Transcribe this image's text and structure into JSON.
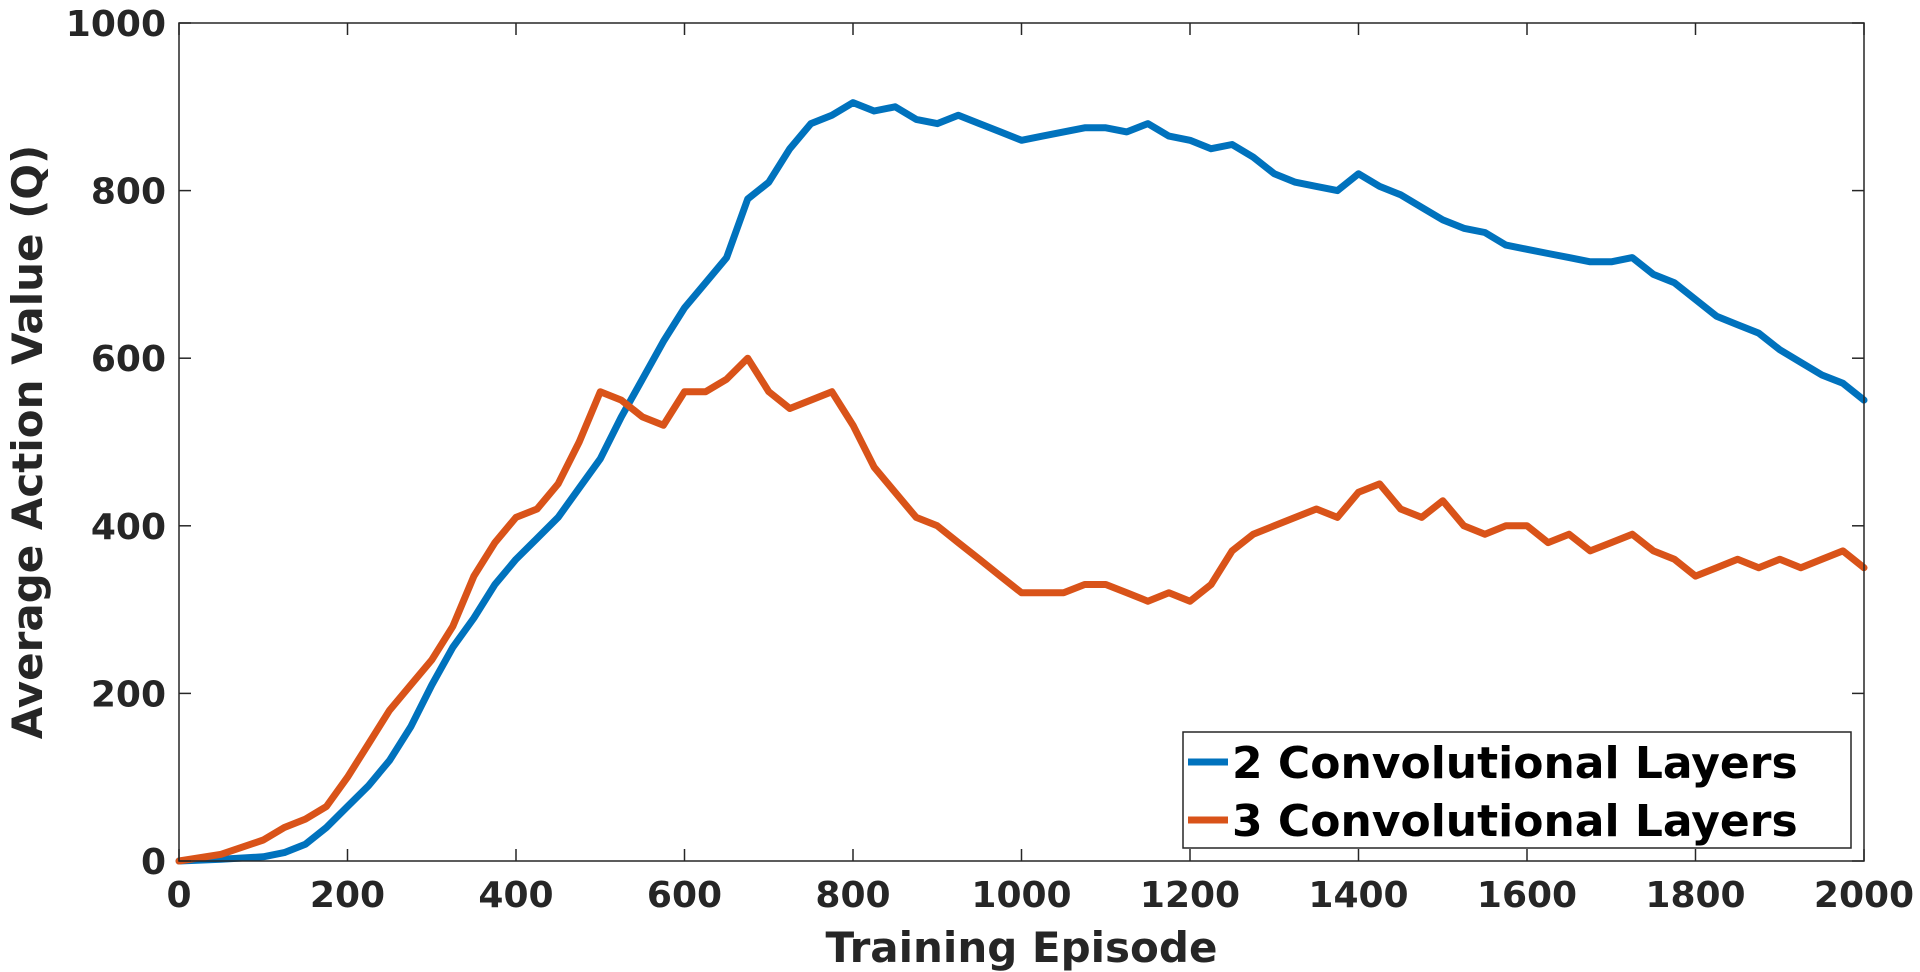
{
  "chart_data": {
    "type": "line",
    "title": "",
    "xlabel": "Training Episode",
    "ylabel": "Average Action Value (Q)",
    "xlim": [
      0,
      2000
    ],
    "ylim": [
      0,
      1000
    ],
    "x_ticks": [
      0,
      200,
      400,
      600,
      800,
      1000,
      1200,
      1400,
      1600,
      1800,
      2000
    ],
    "y_ticks": [
      0,
      200,
      400,
      600,
      800,
      1000
    ],
    "x_tick_labels": [
      "0",
      "200",
      "400",
      "600",
      "800",
      "1000",
      "1200",
      "1400",
      "1600",
      "1800",
      "2000"
    ],
    "y_tick_labels": [
      "0",
      "200",
      "400",
      "600",
      "800",
      "1000"
    ],
    "grid": false,
    "legend_position": "bottom-right",
    "series": [
      {
        "name": "2 Convolutional Layers",
        "color": "#0072BD",
        "x": [
          0,
          50,
          100,
          125,
          150,
          175,
          200,
          225,
          250,
          275,
          300,
          325,
          350,
          375,
          400,
          425,
          450,
          475,
          500,
          525,
          550,
          575,
          600,
          625,
          650,
          675,
          700,
          725,
          750,
          775,
          800,
          825,
          850,
          875,
          900,
          925,
          950,
          975,
          1000,
          1025,
          1050,
          1075,
          1100,
          1125,
          1150,
          1175,
          1200,
          1225,
          1250,
          1275,
          1300,
          1325,
          1350,
          1375,
          1400,
          1425,
          1450,
          1475,
          1500,
          1525,
          1550,
          1575,
          1600,
          1625,
          1650,
          1675,
          1700,
          1725,
          1750,
          1775,
          1800,
          1825,
          1850,
          1875,
          1900,
          1925,
          1950,
          1975,
          2000
        ],
        "y": [
          0,
          2,
          5,
          10,
          20,
          40,
          65,
          90,
          120,
          160,
          210,
          255,
          290,
          330,
          360,
          385,
          410,
          445,
          480,
          530,
          575,
          620,
          660,
          690,
          720,
          790,
          810,
          850,
          880,
          890,
          905,
          895,
          900,
          885,
          880,
          890,
          880,
          870,
          860,
          865,
          870,
          875,
          875,
          870,
          880,
          865,
          860,
          850,
          855,
          840,
          820,
          810,
          805,
          800,
          820,
          805,
          795,
          780,
          765,
          755,
          750,
          735,
          730,
          725,
          720,
          715,
          715,
          720,
          700,
          690,
          670,
          650,
          640,
          630,
          610,
          595,
          580,
          570,
          550
        ]
      },
      {
        "name": "3 Convolutional Layers",
        "color": "#D95319",
        "x": [
          0,
          50,
          100,
          125,
          150,
          175,
          200,
          225,
          250,
          275,
          300,
          325,
          350,
          375,
          400,
          425,
          450,
          475,
          500,
          525,
          550,
          575,
          600,
          625,
          650,
          675,
          700,
          725,
          750,
          775,
          800,
          825,
          850,
          875,
          900,
          925,
          950,
          975,
          1000,
          1025,
          1050,
          1075,
          1100,
          1125,
          1150,
          1175,
          1200,
          1225,
          1250,
          1275,
          1300,
          1325,
          1350,
          1375,
          1400,
          1425,
          1450,
          1475,
          1500,
          1525,
          1550,
          1575,
          1600,
          1625,
          1650,
          1675,
          1700,
          1725,
          1750,
          1775,
          1800,
          1825,
          1850,
          1875,
          1900,
          1925,
          1950,
          1975,
          2000
        ],
        "y": [
          0,
          8,
          25,
          40,
          50,
          65,
          100,
          140,
          180,
          210,
          240,
          280,
          340,
          380,
          410,
          420,
          450,
          500,
          560,
          550,
          530,
          520,
          560,
          560,
          575,
          600,
          560,
          540,
          550,
          560,
          520,
          470,
          440,
          410,
          400,
          380,
          360,
          340,
          320,
          320,
          320,
          330,
          330,
          320,
          310,
          320,
          310,
          330,
          370,
          390,
          400,
          410,
          420,
          410,
          440,
          450,
          420,
          410,
          430,
          400,
          390,
          400,
          400,
          380,
          390,
          370,
          380,
          390,
          370,
          360,
          340,
          350,
          360,
          350,
          360,
          350,
          360,
          370,
          350
        ]
      }
    ]
  }
}
